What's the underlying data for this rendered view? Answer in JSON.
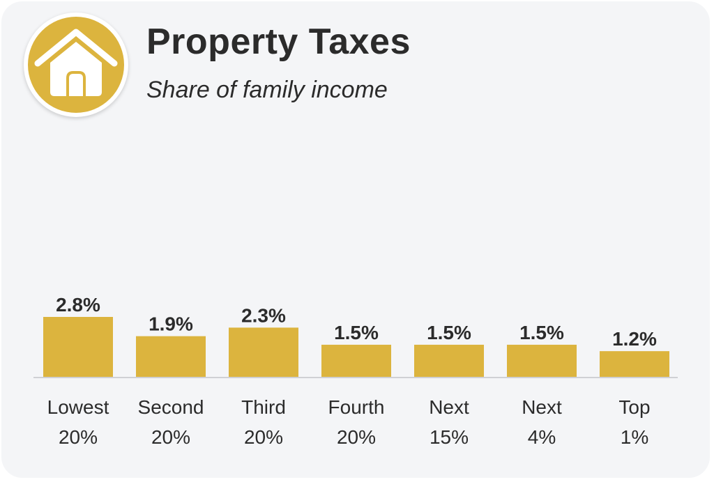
{
  "header": {
    "icon": "house-icon",
    "title": "Property Taxes",
    "subtitle": "Share of family income"
  },
  "colors": {
    "bar": "#dcb43e",
    "badge": "#dcb43e",
    "baseline": "#cfd0d4"
  },
  "chart_data": {
    "type": "bar",
    "title": "Property Taxes",
    "subtitle": "Share of family income",
    "categories": [
      [
        "Lowest",
        "20%"
      ],
      [
        "Second",
        "20%"
      ],
      [
        "Third",
        "20%"
      ],
      [
        "Fourth",
        "20%"
      ],
      [
        "Next",
        "15%"
      ],
      [
        "Next",
        "4%"
      ],
      [
        "Top",
        "1%"
      ]
    ],
    "values": [
      2.8,
      1.9,
      2.3,
      1.5,
      1.5,
      1.5,
      1.2
    ],
    "value_labels": [
      "2.8%",
      "1.9%",
      "2.3%",
      "1.5%",
      "1.5%",
      "1.5%",
      "1.2%"
    ],
    "ylim": [
      0,
      2.8
    ],
    "grid": false,
    "legend": "none"
  }
}
